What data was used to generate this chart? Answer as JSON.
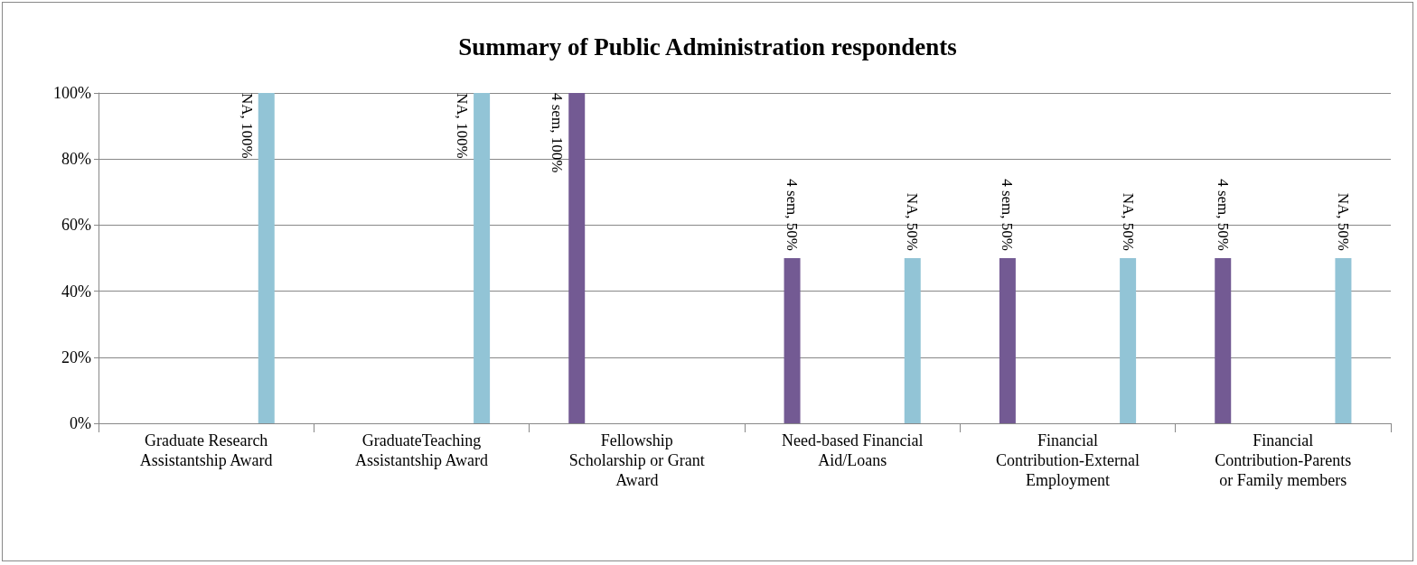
{
  "chart_data": {
    "type": "bar",
    "title": "Summary of Public Administration respondents",
    "categories": [
      "Graduate Research Assistantship Award",
      "GraduateTeaching Assistantship Award",
      "Fellowship Scholarship or Grant Award",
      "Need-based Financial Aid/Loans",
      "Financial Contribution-External Employment",
      "Financial Contribution-Parents or Family members"
    ],
    "series": [
      {
        "color": "#735a93",
        "values": [
          null,
          null,
          100,
          50,
          50,
          50
        ],
        "value_labels": [
          null,
          null,
          "4 sem, 100%",
          "4 sem, 50%",
          "4 sem, 50%",
          "4 sem, 50%"
        ]
      },
      {
        "color": "#92c4d6",
        "values": [
          100,
          100,
          null,
          50,
          50,
          50
        ],
        "value_labels": [
          "NA, 100%",
          "NA, 100%",
          null,
          "NA, 50%",
          "NA, 50%",
          "NA, 50%"
        ]
      }
    ],
    "ylim": [
      0,
      100
    ],
    "yticks": [
      {
        "value": 0,
        "label": "0%"
      },
      {
        "value": 20,
        "label": "20%"
      },
      {
        "value": 40,
        "label": "40%"
      },
      {
        "value": 60,
        "label": "60%"
      },
      {
        "value": 80,
        "label": "80%"
      },
      {
        "value": 100,
        "label": "100%"
      }
    ],
    "grid": "y"
  }
}
